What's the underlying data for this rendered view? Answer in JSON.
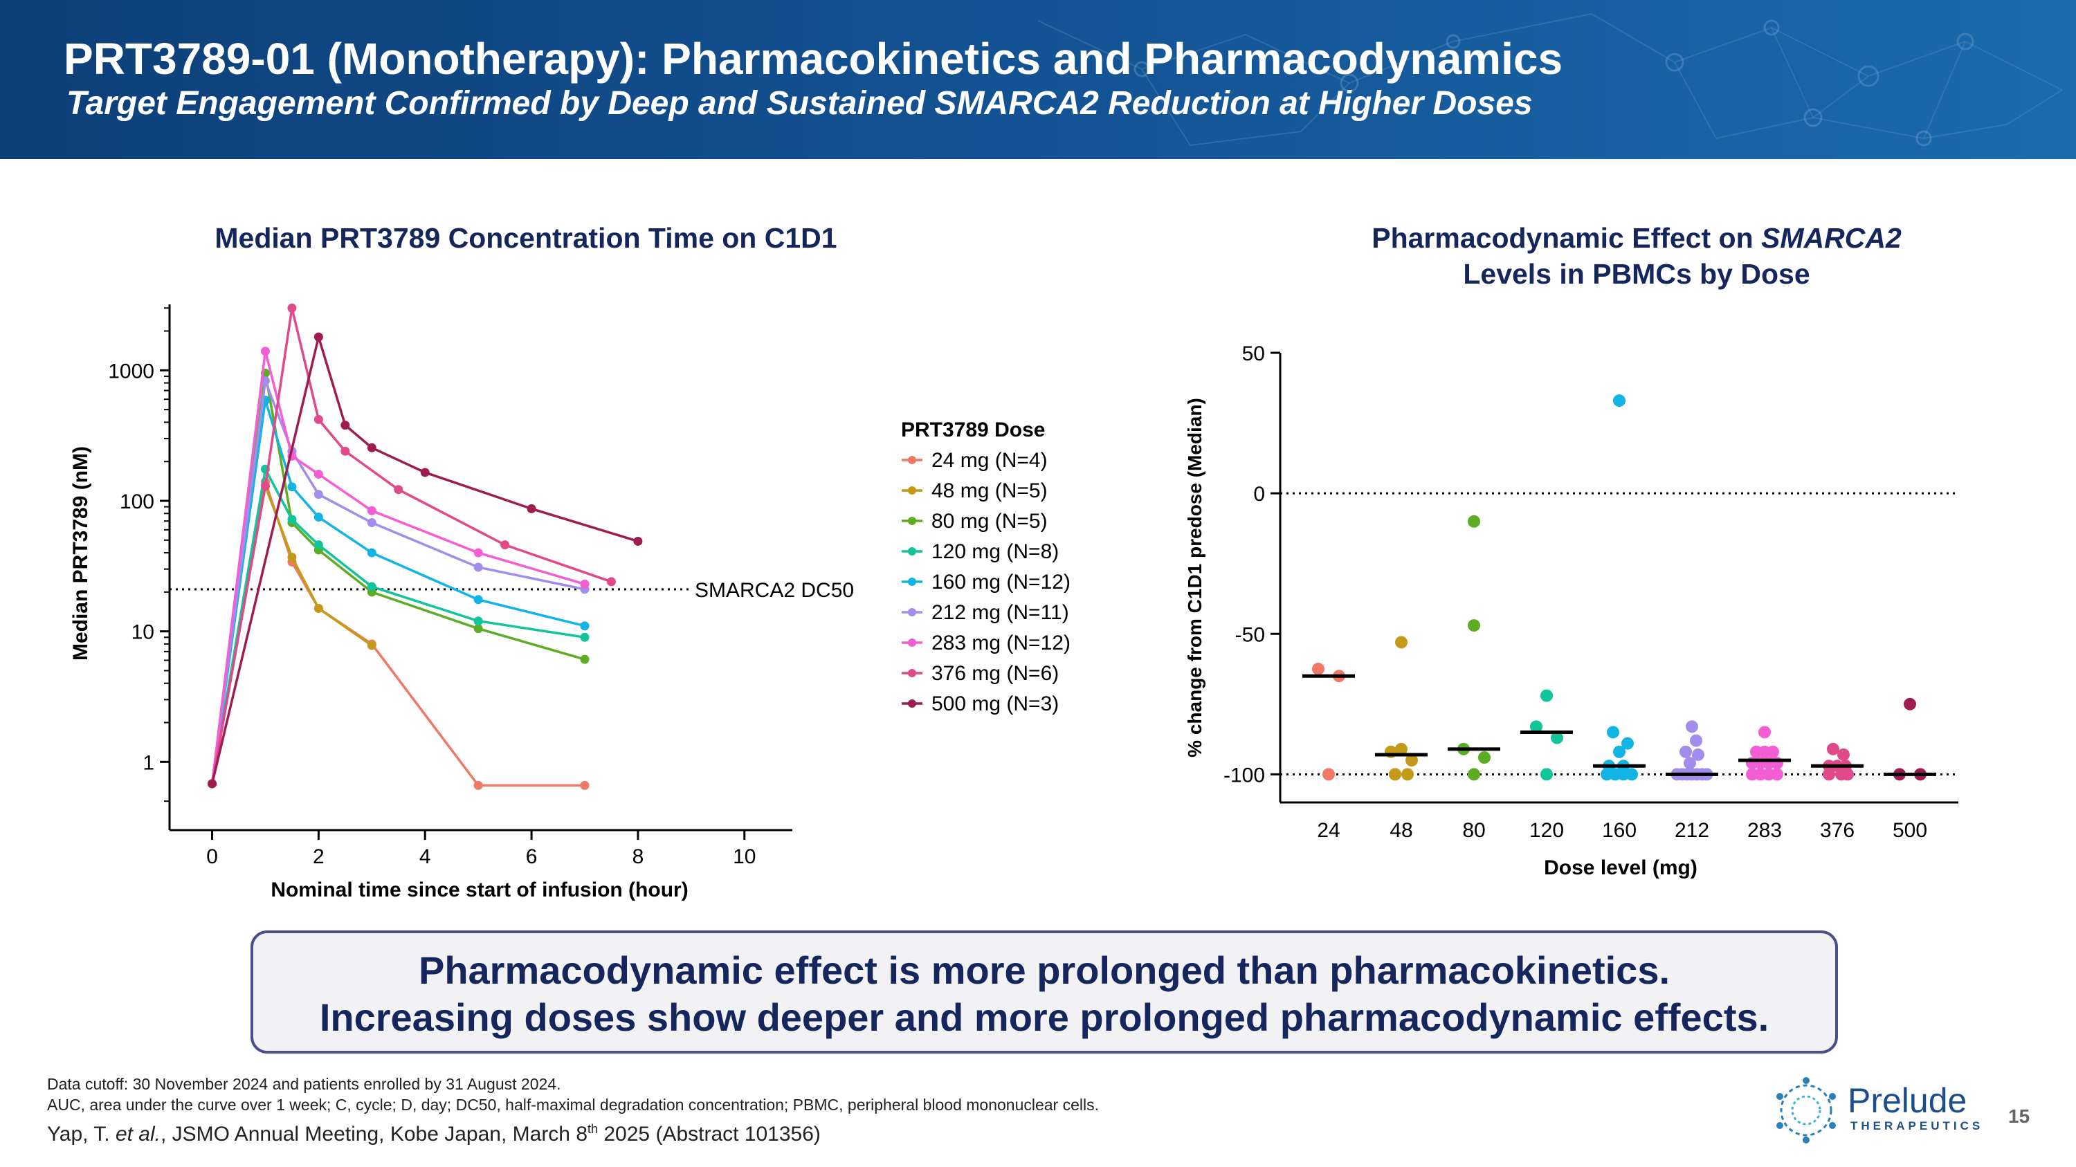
{
  "header": {
    "title": "PRT3789-01 (Monotherapy): Pharmacokinetics and Pharmacodynamics",
    "subtitle": "Target Engagement Confirmed by Deep and Sustained SMARCA2 Reduction at Higher Doses"
  },
  "left_chart": {
    "title": "Median PRT3789 Concentration Time on C1D1",
    "dc50_label": "SMARCA2 DC50",
    "legend_title": "PRT3789 Dose"
  },
  "right_chart": {
    "title_part1": "Pharmacodynamic Effect on ",
    "title_gene": "SMARCA2",
    "title_line2": "Levels in PBMCs by Dose"
  },
  "chart_data": [
    {
      "type": "line",
      "title": "Median PRT3789 Concentration Time on C1D1",
      "xlabel": "Nominal time since start of infusion (hour)",
      "ylabel": "Median PRT3789 (nM)",
      "xlim": [
        -0.8,
        10.9
      ],
      "ylim": [
        0.3,
        3200
      ],
      "yscale": "log",
      "xticks": [
        0,
        2,
        4,
        6,
        8,
        10
      ],
      "yticks": [
        1,
        10,
        100,
        1000
      ],
      "ytick_labels": [
        "1",
        "10",
        "100",
        "1000"
      ],
      "reference_line": {
        "y": 21,
        "label": "SMARCA2 DC50"
      },
      "legend_title": "PRT3789 Dose",
      "series": [
        {
          "name": "24 mg (N=4)",
          "color": "#f07866",
          "points": [
            [
              0,
              0.68
            ],
            [
              1,
              140
            ],
            [
              1.5,
              34
            ],
            [
              2,
              15
            ],
            [
              3,
              8
            ],
            [
              5,
              0.66
            ],
            [
              7,
              0.66
            ]
          ]
        },
        {
          "name": "48 mg (N=5)",
          "color": "#c49a1a",
          "points": [
            [
              0,
              0.68
            ],
            [
              1,
              130
            ],
            [
              1.5,
              37
            ],
            [
              2,
              15
            ],
            [
              3,
              7.8
            ]
          ]
        },
        {
          "name": "80 mg (N=5)",
          "color": "#5cad24",
          "points": [
            [
              0,
              0.68
            ],
            [
              1,
              950
            ],
            [
              1.5,
              68
            ],
            [
              2,
              42
            ],
            [
              3,
              20
            ],
            [
              5,
              10.5
            ],
            [
              7,
              6.1
            ]
          ]
        },
        {
          "name": "120 mg (N=8)",
          "color": "#12c49a",
          "points": [
            [
              0,
              0.68
            ],
            [
              1,
              175
            ],
            [
              1.5,
              72
            ],
            [
              2,
              46
            ],
            [
              3,
              22
            ],
            [
              5,
              12
            ],
            [
              7,
              9
            ]
          ]
        },
        {
          "name": "160 mg (N=12)",
          "color": "#12b4e4",
          "points": [
            [
              0,
              0.68
            ],
            [
              1,
              590
            ],
            [
              1.5,
              128
            ],
            [
              2,
              75
            ],
            [
              3,
              40
            ],
            [
              5,
              17.5
            ],
            [
              7,
              11
            ]
          ]
        },
        {
          "name": "212 mg (N=11)",
          "color": "#a28cec",
          "points": [
            [
              0,
              0.68
            ],
            [
              1,
              830
            ],
            [
              1.5,
              240
            ],
            [
              2,
              112
            ],
            [
              3,
              68
            ],
            [
              5,
              31
            ],
            [
              7,
              21
            ]
          ]
        },
        {
          "name": "283 mg (N=12)",
          "color": "#f45ed4",
          "points": [
            [
              0,
              0.68
            ],
            [
              1,
              1400
            ],
            [
              1.5,
              220
            ],
            [
              2,
              160
            ],
            [
              3,
              84
            ],
            [
              5,
              40
            ],
            [
              7,
              23
            ]
          ]
        },
        {
          "name": "376 mg (N=6)",
          "color": "#e04a8a",
          "points": [
            [
              0,
              0.68
            ],
            [
              1,
              130
            ],
            [
              1.5,
              3000
            ],
            [
              2,
              420
            ],
            [
              2.5,
              240
            ],
            [
              3.5,
              122
            ],
            [
              5.5,
              46
            ],
            [
              7.5,
              24
            ]
          ]
        },
        {
          "name": "500 mg (N=3)",
          "color": "#9e1c50",
          "points": [
            [
              0,
              0.68
            ],
            [
              2,
              1800
            ],
            [
              2.5,
              380
            ],
            [
              3,
              255
            ],
            [
              4,
              165
            ],
            [
              6,
              87
            ],
            [
              8,
              49
            ]
          ]
        }
      ]
    },
    {
      "type": "scatter",
      "title": "Pharmacodynamic Effect on SMARCA2 Levels in PBMCs by Dose",
      "xlabel": "Dose level (mg)",
      "ylabel": "% change from C1D1 predose (Median)",
      "ylim": [
        -110,
        50
      ],
      "yticks": [
        50,
        0,
        -50,
        -100
      ],
      "ytick_labels": [
        "50",
        "0",
        "-50",
        "-100"
      ],
      "reference_lines": [
        0,
        -100
      ],
      "categories": [
        "24",
        "48",
        "80",
        "120",
        "160",
        "212",
        "283",
        "376",
        "500"
      ],
      "medians": [
        -65,
        -93,
        -91,
        -85,
        -97,
        -100,
        -95,
        -97,
        -100
      ],
      "groups": [
        {
          "dose": "24",
          "color": "#f07866",
          "points": [
            [
              -0.25,
              -62.5
            ],
            [
              0.25,
              -65
            ],
            [
              0,
              -100
            ]
          ]
        },
        {
          "dose": "48",
          "color": "#c49a1a",
          "points": [
            [
              0,
              -53
            ],
            [
              -0.25,
              -92
            ],
            [
              0,
              -91
            ],
            [
              0.25,
              -95
            ],
            [
              -0.15,
              -100
            ],
            [
              0.15,
              -100
            ]
          ]
        },
        {
          "dose": "80",
          "color": "#5cad24",
          "points": [
            [
              0,
              -10
            ],
            [
              0,
              -47
            ],
            [
              -0.25,
              -91
            ],
            [
              0.25,
              -94
            ],
            [
              0,
              -100
            ]
          ]
        },
        {
          "dose": "120",
          "color": "#12c49a",
          "points": [
            [
              0,
              -72
            ],
            [
              -0.25,
              -83
            ],
            [
              0.25,
              -87
            ],
            [
              0,
              -100
            ]
          ]
        },
        {
          "dose": "160",
          "color": "#12b4e4",
          "points": [
            [
              0,
              33
            ],
            [
              -0.15,
              -85
            ],
            [
              0.2,
              -89
            ],
            [
              0,
              -92
            ],
            [
              -0.25,
              -97
            ],
            [
              0.1,
              -97
            ],
            [
              -0.3,
              -100
            ],
            [
              -0.1,
              -100
            ],
            [
              0.1,
              -100
            ],
            [
              0.3,
              -100
            ]
          ]
        },
        {
          "dose": "212",
          "color": "#a28cec",
          "points": [
            [
              0,
              -83
            ],
            [
              0.1,
              -88
            ],
            [
              -0.15,
              -92
            ],
            [
              0.15,
              -93
            ],
            [
              -0.05,
              -96
            ],
            [
              -0.36,
              -100
            ],
            [
              -0.24,
              -100
            ],
            [
              -0.12,
              -100
            ],
            [
              0,
              -100
            ],
            [
              0.12,
              -100
            ],
            [
              0.24,
              -100
            ],
            [
              0.36,
              -100
            ]
          ]
        },
        {
          "dose": "283",
          "color": "#f45ed4",
          "points": [
            [
              0,
              -85
            ],
            [
              -0.2,
              -92
            ],
            [
              0,
              -92
            ],
            [
              0.2,
              -92
            ],
            [
              -0.3,
              -96
            ],
            [
              -0.1,
              -96
            ],
            [
              0.1,
              -96
            ],
            [
              0.3,
              -96
            ],
            [
              -0.3,
              -100
            ],
            [
              -0.1,
              -100
            ],
            [
              0.1,
              -100
            ],
            [
              0.3,
              -100
            ]
          ]
        },
        {
          "dose": "376",
          "color": "#e04a8a",
          "points": [
            [
              -0.1,
              -91
            ],
            [
              0.15,
              -93
            ],
            [
              -0.2,
              -97
            ],
            [
              0,
              -97
            ],
            [
              0.2,
              -97
            ],
            [
              -0.2,
              -100
            ],
            [
              0.1,
              -100
            ],
            [
              0.25,
              -100
            ]
          ]
        },
        {
          "dose": "500",
          "color": "#9e1c50",
          "points": [
            [
              0,
              -75
            ],
            [
              -0.25,
              -100
            ],
            [
              0.25,
              -100
            ]
          ]
        }
      ]
    }
  ],
  "callout": {
    "line1": "Pharmacodynamic effect is more prolonged than pharmacokinetics.",
    "line2": "Increasing doses show deeper and more prolonged pharmacodynamic effects."
  },
  "footnotes": {
    "line1": "Data cutoff: 30 November 2024 and patients enrolled by 31 August 2024.",
    "line2": "AUC, area under the curve over 1 week; C, cycle; D, day; DC50, half-maximal degradation concentration; PBMC, peripheral blood mononuclear cells.",
    "ref_author": "Yap, T. ",
    "ref_etal": "et al.",
    "ref_meeting": ", JSMO Annual Meeting, Kobe Japan, March 8",
    "ref_sup": "th",
    "ref_tail": " 2025 (Abstract 101356)"
  },
  "branding": {
    "company": "Prelude",
    "tagline": "THERAPEUTICS"
  },
  "page_number": "15"
}
